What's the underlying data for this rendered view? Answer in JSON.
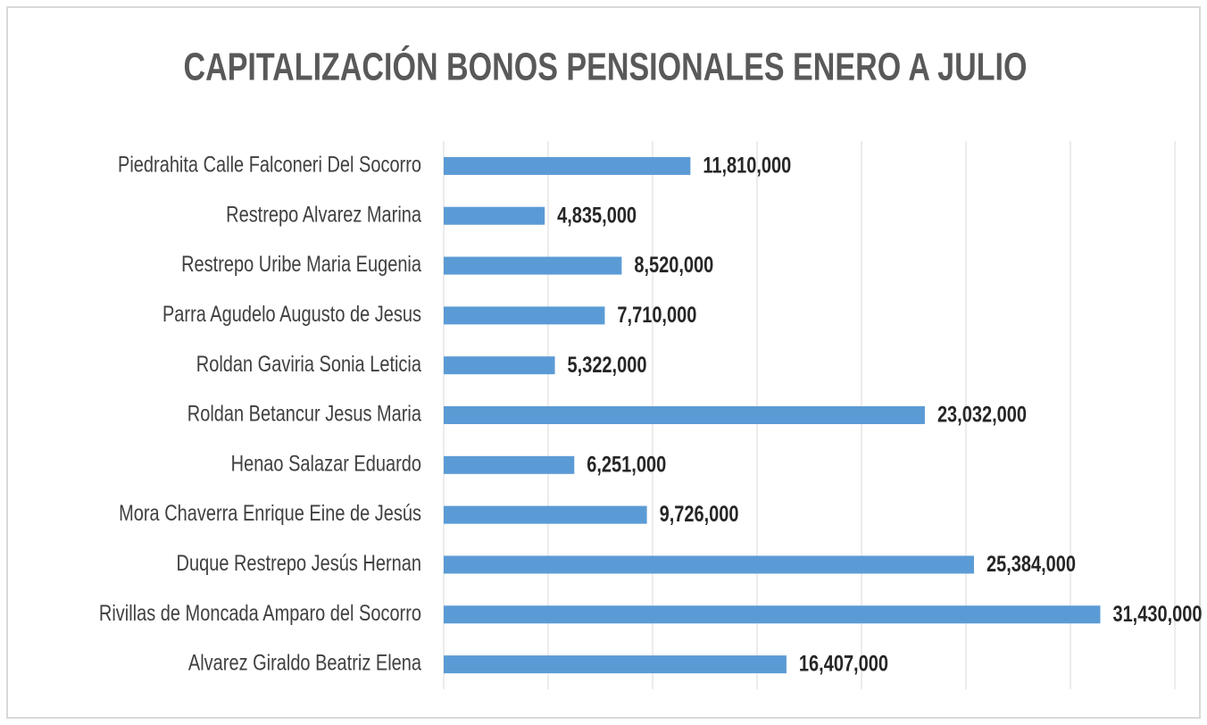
{
  "chart_data": {
    "type": "bar",
    "orientation": "horizontal",
    "title": "CAPITALIZACIÓN BONOS PENSIONALES ENERO A JULIO",
    "categories": [
      "Piedrahita Calle Falconeri Del Socorro",
      "Restrepo Alvarez Marina",
      "Restrepo Uribe Maria Eugenia",
      "Parra Agudelo Augusto de Jesus",
      "Roldan Gaviria Sonia Leticia",
      "Roldan Betancur Jesus Maria",
      "Henao Salazar Eduardo",
      "Mora Chaverra Enrique Eine de Jesús",
      "Duque Restrepo Jesús Hernan",
      "Rivillas de Moncada Amparo del Socorro",
      "Alvarez Giraldo Beatriz Elena"
    ],
    "values": [
      11810000,
      4835000,
      8520000,
      7710000,
      5322000,
      23032000,
      6251000,
      9726000,
      25384000,
      31430000,
      16407000
    ],
    "value_labels": [
      "11,810,000",
      "4,835,000",
      "8,520,000",
      "7,710,000",
      "5,322,000",
      "23,032,000",
      "6,251,000",
      "9,726,000",
      "25,384,000",
      "31,430,000",
      "16,407,000"
    ],
    "color": "#5b9bd5",
    "xlim": [
      0,
      35000000
    ],
    "xticks": [
      0,
      5000000,
      10000000,
      15000000,
      20000000,
      25000000,
      30000000,
      35000000
    ],
    "grid": true
  }
}
